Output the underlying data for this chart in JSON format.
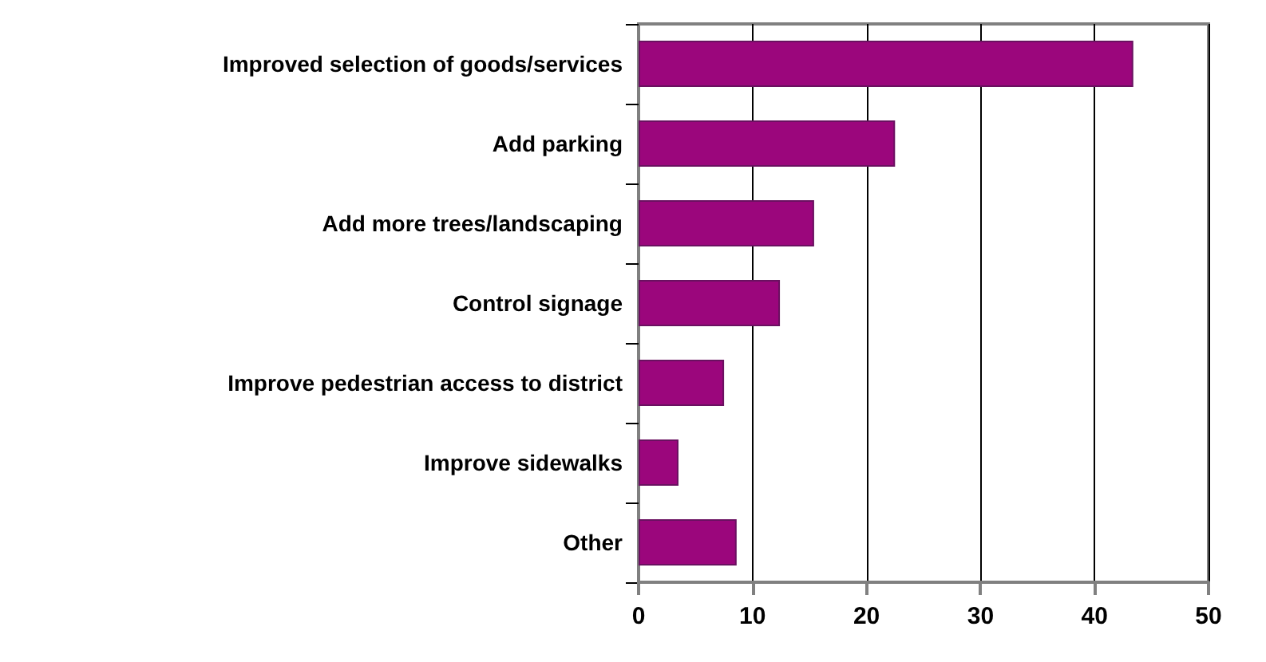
{
  "chart_data": {
    "type": "bar",
    "orientation": "horizontal",
    "categories": [
      "Improved selection of goods/services",
      "Add parking",
      "Add more trees/landscaping",
      "Control signage",
      "Improve pedestrian access to district",
      "Improve sidewalks",
      "Other"
    ],
    "values": [
      43.4,
      22.5,
      15.4,
      12.4,
      7.5,
      3.5,
      8.6
    ],
    "color": "#9b067c",
    "xlim": [
      0,
      50
    ],
    "xticks": [
      0,
      10,
      20,
      30,
      40,
      50
    ],
    "grid": "x"
  }
}
